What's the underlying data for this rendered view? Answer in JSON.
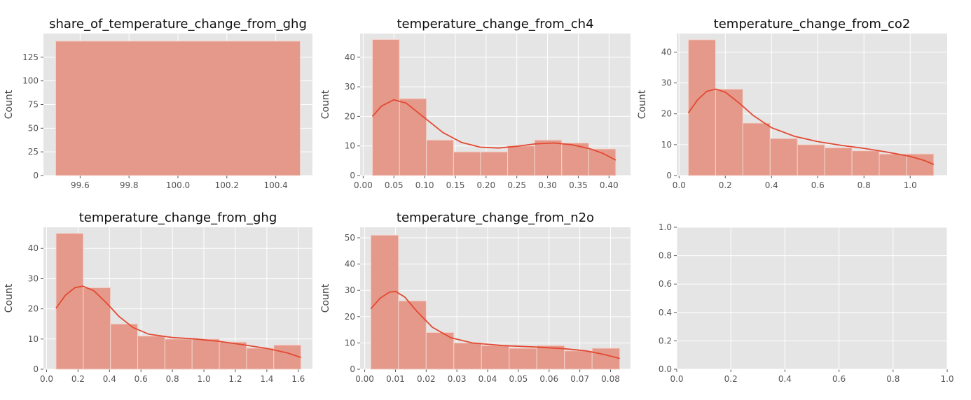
{
  "chart_data": [
    {
      "type": "bar",
      "title": "share_of_temperature_change_from_ghg",
      "xlabel": "",
      "ylabel": "Count",
      "xlim": [
        99.45,
        100.55
      ],
      "ylim": [
        0,
        150
      ],
      "xticks": [
        "99.6",
        "99.8",
        "100.0",
        "100.2",
        "100.4"
      ],
      "yticks": [
        "0",
        "25",
        "50",
        "75",
        "100",
        "125"
      ],
      "bins": [
        [
          99.5,
          100.5,
          142
        ]
      ],
      "kde": [],
      "grid": true
    },
    {
      "type": "bar",
      "title": "temperature_change_from_ch4",
      "xlabel": "",
      "ylabel": "Count",
      "xlim": [
        -0.005,
        0.435
      ],
      "ylim": [
        0,
        48
      ],
      "xticks": [
        "0.00",
        "0.05",
        "0.10",
        "0.15",
        "0.20",
        "0.25",
        "0.30",
        "0.35",
        "0.40"
      ],
      "yticks": [
        "0",
        "10",
        "20",
        "30",
        "40"
      ],
      "bins": [
        [
          0.015,
          0.059,
          46
        ],
        [
          0.059,
          0.103,
          26
        ],
        [
          0.103,
          0.147,
          12
        ],
        [
          0.147,
          0.191,
          8
        ],
        [
          0.191,
          0.235,
          8
        ],
        [
          0.235,
          0.279,
          10
        ],
        [
          0.279,
          0.323,
          12
        ],
        [
          0.323,
          0.367,
          11
        ],
        [
          0.367,
          0.411,
          9
        ]
      ],
      "kde": [
        [
          0.015,
          20
        ],
        [
          0.03,
          23.5
        ],
        [
          0.05,
          25.6
        ],
        [
          0.07,
          24.5
        ],
        [
          0.1,
          19.5
        ],
        [
          0.13,
          14.5
        ],
        [
          0.16,
          11.2
        ],
        [
          0.19,
          9.6
        ],
        [
          0.22,
          9.3
        ],
        [
          0.25,
          9.9
        ],
        [
          0.28,
          10.7
        ],
        [
          0.31,
          11
        ],
        [
          0.34,
          10.4
        ],
        [
          0.37,
          9
        ],
        [
          0.39,
          7.5
        ],
        [
          0.411,
          5.2
        ]
      ],
      "grid": true
    },
    {
      "type": "bar",
      "title": "temperature_change_from_co2",
      "xlabel": "",
      "ylabel": "Count",
      "xlim": [
        -0.01,
        1.16
      ],
      "ylim": [
        0,
        46
      ],
      "xticks": [
        "0.0",
        "0.2",
        "0.4",
        "0.6",
        "0.8",
        "1.0"
      ],
      "yticks": [
        "0",
        "10",
        "20",
        "30",
        "40"
      ],
      "bins": [
        [
          0.04,
          0.158,
          44
        ],
        [
          0.158,
          0.276,
          28
        ],
        [
          0.276,
          0.394,
          17
        ],
        [
          0.394,
          0.512,
          12
        ],
        [
          0.512,
          0.63,
          10
        ],
        [
          0.63,
          0.748,
          9
        ],
        [
          0.748,
          0.866,
          8
        ],
        [
          0.866,
          0.984,
          7
        ],
        [
          0.984,
          1.102,
          7
        ]
      ],
      "kde": [
        [
          0.04,
          20.3
        ],
        [
          0.08,
          24.5
        ],
        [
          0.12,
          27.3
        ],
        [
          0.16,
          28
        ],
        [
          0.2,
          27
        ],
        [
          0.26,
          23.5
        ],
        [
          0.32,
          19.5
        ],
        [
          0.4,
          15.5
        ],
        [
          0.5,
          12.7
        ],
        [
          0.6,
          11
        ],
        [
          0.7,
          9.8
        ],
        [
          0.8,
          8.8
        ],
        [
          0.9,
          7.6
        ],
        [
          1.0,
          6.2
        ],
        [
          1.06,
          4.9
        ],
        [
          1.102,
          3.6
        ]
      ],
      "grid": true
    },
    {
      "type": "bar",
      "title": "temperature_change_from_ghg",
      "xlabel": "",
      "ylabel": "Count",
      "xlim": [
        -0.02,
        1.69
      ],
      "ylim": [
        0,
        47
      ],
      "xticks": [
        "0.0",
        "0.2",
        "0.4",
        "0.6",
        "0.8",
        "1.0",
        "1.2",
        "1.4",
        "1.6"
      ],
      "yticks": [
        "0",
        "10",
        "20",
        "30",
        "40"
      ],
      "bins": [
        [
          0.06,
          0.233,
          45
        ],
        [
          0.233,
          0.406,
          27
        ],
        [
          0.406,
          0.579,
          15
        ],
        [
          0.579,
          0.752,
          11
        ],
        [
          0.752,
          0.925,
          10
        ],
        [
          0.925,
          1.098,
          10
        ],
        [
          1.098,
          1.271,
          9
        ],
        [
          1.271,
          1.444,
          7
        ],
        [
          1.444,
          1.617,
          8
        ]
      ],
      "kde": [
        [
          0.06,
          20.2
        ],
        [
          0.12,
          24.5
        ],
        [
          0.18,
          27
        ],
        [
          0.23,
          27.5
        ],
        [
          0.3,
          26
        ],
        [
          0.38,
          22
        ],
        [
          0.46,
          17.5
        ],
        [
          0.55,
          13.8
        ],
        [
          0.65,
          11.6
        ],
        [
          0.8,
          10.5
        ],
        [
          0.95,
          10
        ],
        [
          1.1,
          9.2
        ],
        [
          1.25,
          8.1
        ],
        [
          1.4,
          6.9
        ],
        [
          1.53,
          5.4
        ],
        [
          1.617,
          3.9
        ]
      ],
      "grid": true
    },
    {
      "type": "bar",
      "title": "temperature_change_from_n2o",
      "xlabel": "",
      "ylabel": "Count",
      "xlim": [
        -0.0015,
        0.0865
      ],
      "ylim": [
        0,
        54
      ],
      "xticks": [
        "0.00",
        "0.01",
        "0.02",
        "0.03",
        "0.04",
        "0.05",
        "0.06",
        "0.07",
        "0.08"
      ],
      "yticks": [
        "0",
        "10",
        "20",
        "30",
        "40",
        "50"
      ],
      "bins": [
        [
          0.002,
          0.011,
          51
        ],
        [
          0.011,
          0.02,
          26
        ],
        [
          0.02,
          0.029,
          14
        ],
        [
          0.029,
          0.038,
          10
        ],
        [
          0.038,
          0.047,
          9
        ],
        [
          0.047,
          0.056,
          8
        ],
        [
          0.056,
          0.065,
          9
        ],
        [
          0.065,
          0.074,
          7
        ],
        [
          0.074,
          0.083,
          8
        ]
      ],
      "kde": [
        [
          0.002,
          23
        ],
        [
          0.005,
          27
        ],
        [
          0.008,
          29.3
        ],
        [
          0.01,
          29.6
        ],
        [
          0.013,
          27.5
        ],
        [
          0.017,
          22
        ],
        [
          0.022,
          16
        ],
        [
          0.028,
          12
        ],
        [
          0.035,
          10
        ],
        [
          0.045,
          9
        ],
        [
          0.055,
          8.5
        ],
        [
          0.065,
          7.8
        ],
        [
          0.072,
          7
        ],
        [
          0.078,
          5.6
        ],
        [
          0.083,
          4.1
        ]
      ],
      "grid": true
    },
    {
      "type": "scatter",
      "title": "",
      "xlabel": "",
      "ylabel": "",
      "xlim": [
        0,
        1
      ],
      "ylim": [
        0,
        1
      ],
      "xticks": [
        "0.0",
        "0.2",
        "0.4",
        "0.6",
        "0.8",
        "1.0"
      ],
      "yticks": [
        "0.0",
        "0.2",
        "0.4",
        "0.6",
        "0.8",
        "1.0"
      ],
      "bins": [],
      "kde": [],
      "grid": true
    }
  ],
  "colors": {
    "bar_fill": "#e5998a",
    "bar_edge": "#f2d4cd",
    "kde_line": "#e24a33",
    "plot_bg": "#e5e5e5",
    "grid": "#ffffff"
  }
}
